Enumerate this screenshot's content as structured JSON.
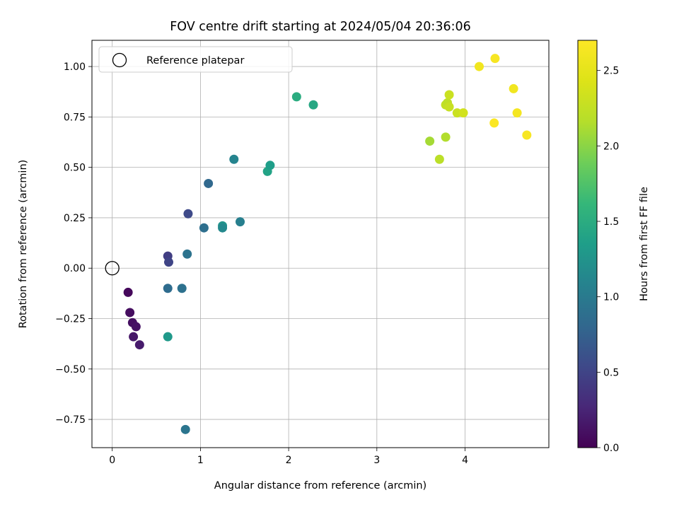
{
  "chart_data": {
    "type": "scatter",
    "title": "FOV centre drift starting at 2024/05/04 20:36:06",
    "xlabel": "Angular distance from reference (arcmin)",
    "ylabel": "Rotation from reference (arcmin)",
    "xlim": [
      -0.23,
      4.95
    ],
    "ylim": [
      -0.89,
      1.13
    ],
    "xticks": [
      0,
      1,
      2,
      3,
      4
    ],
    "yticks": [
      -0.75,
      -0.5,
      -0.25,
      0.0,
      0.25,
      0.5,
      0.75,
      1.0
    ],
    "ytick_labels": [
      "−0.75",
      "−0.50",
      "−0.25",
      "0.00",
      "0.25",
      "0.50",
      "0.75",
      "1.00"
    ],
    "grid": true,
    "legend": {
      "placement": "upper-left",
      "entries": [
        "Reference platepar"
      ]
    },
    "reference_point": {
      "x": 0.0,
      "y": 0.0,
      "label": "Reference platepar"
    },
    "colorbar": {
      "label": "Hours from first FF file",
      "colormap": "viridis",
      "range": [
        0.0,
        2.7
      ],
      "ticks": [
        0.0,
        0.5,
        1.0,
        1.5,
        2.0,
        2.5
      ],
      "tick_labels": [
        "0.0",
        "0.5",
        "1.0",
        "1.5",
        "2.0",
        "2.5"
      ]
    },
    "points": [
      {
        "x": 0.18,
        "y": -0.12,
        "c": 0.05
      },
      {
        "x": 0.2,
        "y": -0.22,
        "c": 0.08
      },
      {
        "x": 0.23,
        "y": -0.27,
        "c": 0.1
      },
      {
        "x": 0.27,
        "y": -0.29,
        "c": 0.12
      },
      {
        "x": 0.24,
        "y": -0.34,
        "c": 0.15
      },
      {
        "x": 0.31,
        "y": -0.38,
        "c": 0.18
      },
      {
        "x": 0.63,
        "y": 0.06,
        "c": 0.45
      },
      {
        "x": 0.64,
        "y": 0.03,
        "c": 0.5
      },
      {
        "x": 0.86,
        "y": 0.27,
        "c": 0.55
      },
      {
        "x": 0.63,
        "y": -0.1,
        "c": 0.85
      },
      {
        "x": 0.79,
        "y": -0.1,
        "c": 0.9
      },
      {
        "x": 0.85,
        "y": 0.07,
        "c": 0.92
      },
      {
        "x": 1.04,
        "y": 0.2,
        "c": 0.88
      },
      {
        "x": 1.09,
        "y": 0.42,
        "c": 0.82
      },
      {
        "x": 0.83,
        "y": -0.8,
        "c": 0.95
      },
      {
        "x": 1.25,
        "y": 0.21,
        "c": 1.25
      },
      {
        "x": 1.25,
        "y": 0.2,
        "c": 1.15
      },
      {
        "x": 1.45,
        "y": 0.23,
        "c": 1.05
      },
      {
        "x": 1.38,
        "y": 0.54,
        "c": 1.1
      },
      {
        "x": 0.63,
        "y": -0.34,
        "c": 1.3
      },
      {
        "x": 1.76,
        "y": 0.48,
        "c": 1.4
      },
      {
        "x": 1.79,
        "y": 0.51,
        "c": 1.35
      },
      {
        "x": 2.09,
        "y": 0.85,
        "c": 1.5
      },
      {
        "x": 2.28,
        "y": 0.81,
        "c": 1.45
      },
      {
        "x": 3.6,
        "y": 0.63,
        "c": 2.1
      },
      {
        "x": 3.71,
        "y": 0.54,
        "c": 2.2
      },
      {
        "x": 3.78,
        "y": 0.65,
        "c": 2.15
      },
      {
        "x": 3.78,
        "y": 0.81,
        "c": 2.25
      },
      {
        "x": 3.8,
        "y": 0.82,
        "c": 2.22
      },
      {
        "x": 3.82,
        "y": 0.8,
        "c": 2.28
      },
      {
        "x": 3.82,
        "y": 0.86,
        "c": 2.3
      },
      {
        "x": 3.91,
        "y": 0.77,
        "c": 2.3
      },
      {
        "x": 3.98,
        "y": 0.77,
        "c": 2.35
      },
      {
        "x": 4.16,
        "y": 1.0,
        "c": 2.6
      },
      {
        "x": 4.34,
        "y": 1.04,
        "c": 2.65
      },
      {
        "x": 4.33,
        "y": 0.72,
        "c": 2.68
      },
      {
        "x": 4.55,
        "y": 0.89,
        "c": 2.6
      },
      {
        "x": 4.59,
        "y": 0.77,
        "c": 2.62
      },
      {
        "x": 4.7,
        "y": 0.66,
        "c": 2.65
      }
    ]
  }
}
